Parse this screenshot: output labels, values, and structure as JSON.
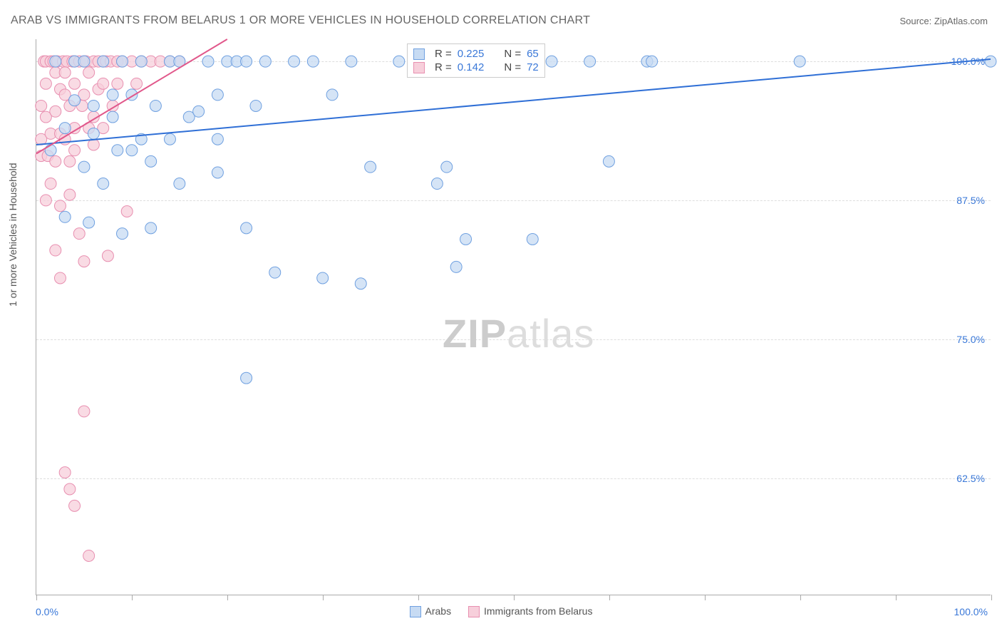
{
  "title": "ARAB VS IMMIGRANTS FROM BELARUS 1 OR MORE VEHICLES IN HOUSEHOLD CORRELATION CHART",
  "source_label": "Source: ",
  "source_name": "ZipAtlas.com",
  "ylabel": "1 or more Vehicles in Household",
  "watermark_a": "ZIP",
  "watermark_b": "atlas",
  "chart": {
    "type": "scatter",
    "xlim": [
      0,
      100
    ],
    "ylim": [
      52,
      102
    ],
    "xticks_pct": [
      0,
      10,
      20,
      30,
      40,
      50,
      60,
      70,
      80,
      90,
      100
    ],
    "yticks": [
      {
        "v": 62.5,
        "label": "62.5%"
      },
      {
        "v": 75.0,
        "label": "75.0%"
      },
      {
        "v": 87.5,
        "label": "87.5%"
      },
      {
        "v": 100.0,
        "label": "100.0%"
      }
    ],
    "xmin_label": "0.0%",
    "xmax_label": "100.0%",
    "background_color": "#ffffff",
    "grid_color": "#dddddd",
    "series": [
      {
        "name": "Arabs",
        "fill": "#c7dbf3",
        "stroke": "#6fa0e0",
        "marker_r": 8,
        "R": "0.225",
        "N": "65",
        "trend": {
          "x1": 0,
          "y1": 92.5,
          "x2": 100,
          "y2": 100.2,
          "color": "#2f6fd6",
          "width": 2
        },
        "points": [
          [
            1.5,
            92
          ],
          [
            2,
            100
          ],
          [
            3,
            86
          ],
          [
            3,
            94
          ],
          [
            4,
            100
          ],
          [
            4,
            96.5
          ],
          [
            5,
            100
          ],
          [
            5,
            90.5
          ],
          [
            5.5,
            85.5
          ],
          [
            6,
            96
          ],
          [
            6,
            93.5
          ],
          [
            7,
            89
          ],
          [
            7,
            100
          ],
          [
            8,
            95
          ],
          [
            8,
            97
          ],
          [
            8.5,
            92
          ],
          [
            9,
            100
          ],
          [
            9,
            84.5
          ],
          [
            10,
            92
          ],
          [
            10,
            97
          ],
          [
            11,
            100
          ],
          [
            11,
            93
          ],
          [
            12,
            91
          ],
          [
            12,
            85
          ],
          [
            12.5,
            96
          ],
          [
            14,
            100
          ],
          [
            14,
            93
          ],
          [
            15,
            89
          ],
          [
            15,
            100
          ],
          [
            16,
            95
          ],
          [
            17,
            95.5
          ],
          [
            18,
            100
          ],
          [
            19,
            93
          ],
          [
            19,
            97
          ],
          [
            19,
            90
          ],
          [
            20,
            100
          ],
          [
            21,
            100
          ],
          [
            22,
            85
          ],
          [
            22,
            100
          ],
          [
            22,
            71.5
          ],
          [
            23,
            96
          ],
          [
            24,
            100
          ],
          [
            25,
            81
          ],
          [
            27,
            100
          ],
          [
            29,
            100
          ],
          [
            30,
            80.5
          ],
          [
            31,
            97
          ],
          [
            33,
            100
          ],
          [
            34,
            80
          ],
          [
            35,
            90.5
          ],
          [
            38,
            100
          ],
          [
            42,
            89
          ],
          [
            43,
            90.5
          ],
          [
            44,
            81.5
          ],
          [
            45,
            84
          ],
          [
            46,
            100
          ],
          [
            48,
            100
          ],
          [
            52,
            84
          ],
          [
            54,
            100
          ],
          [
            58,
            100
          ],
          [
            60,
            91
          ],
          [
            64,
            100
          ],
          [
            64.5,
            100
          ],
          [
            80,
            100
          ],
          [
            100,
            100
          ]
        ]
      },
      {
        "name": "Immigrants from Belarus",
        "fill": "#f7cfdb",
        "stroke": "#e88fb0",
        "R": "0.142",
        "N": "72",
        "marker_r": 8,
        "trend": {
          "x1": 0,
          "y1": 91.7,
          "x2": 20,
          "y2": 102,
          "color": "#e1588b",
          "width": 2
        },
        "points": [
          [
            0.5,
            91.5
          ],
          [
            0.5,
            93
          ],
          [
            0.5,
            96
          ],
          [
            0.8,
            100
          ],
          [
            1,
            87.5
          ],
          [
            1,
            95
          ],
          [
            1,
            98
          ],
          [
            1,
            100
          ],
          [
            1.2,
            91.5
          ],
          [
            1.5,
            100
          ],
          [
            1.5,
            93.5
          ],
          [
            1.5,
            89
          ],
          [
            1.8,
            100
          ],
          [
            2,
            99
          ],
          [
            2,
            95.5
          ],
          [
            2,
            91
          ],
          [
            2,
            83
          ],
          [
            2.2,
            100
          ],
          [
            2.5,
            97.5
          ],
          [
            2.5,
            93.5
          ],
          [
            2.5,
            87
          ],
          [
            2.5,
            80.5
          ],
          [
            2.8,
            100
          ],
          [
            3,
            93
          ],
          [
            3,
            97
          ],
          [
            3,
            99
          ],
          [
            3,
            63
          ],
          [
            3.2,
            100
          ],
          [
            3.5,
            96
          ],
          [
            3.5,
            91
          ],
          [
            3.5,
            88
          ],
          [
            3.5,
            61.5
          ],
          [
            3.8,
            100
          ],
          [
            4,
            100
          ],
          [
            4,
            98
          ],
          [
            4,
            94
          ],
          [
            4,
            92
          ],
          [
            4,
            60
          ],
          [
            4.5,
            100
          ],
          [
            4.5,
            84.5
          ],
          [
            4.8,
            96
          ],
          [
            5,
            100
          ],
          [
            5,
            97
          ],
          [
            5,
            82
          ],
          [
            5,
            68.5
          ],
          [
            5.2,
            100
          ],
          [
            5.5,
            99
          ],
          [
            5.5,
            94
          ],
          [
            5.5,
            55.5
          ],
          [
            6,
            100
          ],
          [
            6,
            95
          ],
          [
            6,
            92.5
          ],
          [
            6.5,
            100
          ],
          [
            6.5,
            97.5
          ],
          [
            7,
            100
          ],
          [
            7,
            98
          ],
          [
            7,
            94
          ],
          [
            7.3,
            100
          ],
          [
            7.5,
            82.5
          ],
          [
            7.8,
            100
          ],
          [
            8,
            96
          ],
          [
            8.5,
            100
          ],
          [
            8.5,
            98
          ],
          [
            9,
            100
          ],
          [
            9.5,
            86.5
          ],
          [
            10,
            100
          ],
          [
            10.5,
            98
          ],
          [
            11,
            100
          ],
          [
            12,
            100
          ],
          [
            13,
            100
          ],
          [
            14,
            100
          ],
          [
            15,
            100
          ]
        ]
      }
    ],
    "legend_stats": {
      "R_label": "R =",
      "N_label": "N ="
    },
    "bottom_legend": [
      {
        "label": "Arabs",
        "fill": "#c7dbf3",
        "stroke": "#6fa0e0"
      },
      {
        "label": "Immigrants from Belarus",
        "fill": "#f7cfdb",
        "stroke": "#e88fb0"
      }
    ]
  }
}
